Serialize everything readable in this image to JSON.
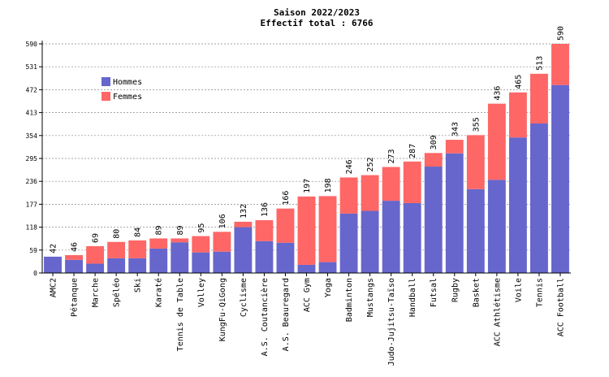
{
  "chart_data": {
    "type": "bar",
    "stacked": true,
    "title": "Saison 2022/2023",
    "subtitle": "Effectif total : 6766",
    "xlabel": "",
    "ylabel": "",
    "ylim": [
      0,
      590
    ],
    "yticks": [
      "0",
      "59",
      "118",
      "177",
      "236",
      "295",
      "354",
      "413",
      "472",
      "531",
      "590"
    ],
    "grid": true,
    "legend_position": "top-left",
    "categories": [
      "AMC2",
      "Pétanque",
      "Marche",
      "Spéléo",
      "Ski",
      "Karaté",
      "Tennis de Table",
      "Volley",
      "KungFu-QiGong",
      "Cyclisme",
      "A.S. Coutancière",
      "A.S. Beauregard",
      "ACC Gym",
      "Yoga",
      "Badminton",
      "Mustangs",
      "Judo-Jujitsu-Taïso",
      "Handball",
      "Futsal",
      "Rugby",
      "Basket",
      "ACC Athlétisme",
      "Voile",
      "Tennis",
      "ACC Football"
    ],
    "totals": [
      "42",
      "46",
      "69",
      "80",
      "84",
      "89",
      "89",
      "95",
      "106",
      "132",
      "136",
      "166",
      "197",
      "198",
      "246",
      "252",
      "273",
      "287",
      "309",
      "343",
      "355",
      "436",
      "465",
      "513",
      "590"
    ],
    "series": [
      {
        "name": "Hommes",
        "color": "#6666cc",
        "values": [
          42,
          34,
          24,
          38,
          38,
          63,
          79,
          53,
          55,
          118,
          82,
          78,
          21,
          28,
          153,
          160,
          186,
          180,
          274,
          308,
          216,
          240,
          349,
          385,
          484
        ]
      },
      {
        "name": "Femmes",
        "color": "#ff6666",
        "values": [
          0,
          12,
          45,
          42,
          46,
          26,
          10,
          42,
          51,
          14,
          54,
          88,
          176,
          170,
          93,
          92,
          87,
          107,
          35,
          35,
          139,
          196,
          116,
          128,
          106
        ]
      }
    ]
  }
}
